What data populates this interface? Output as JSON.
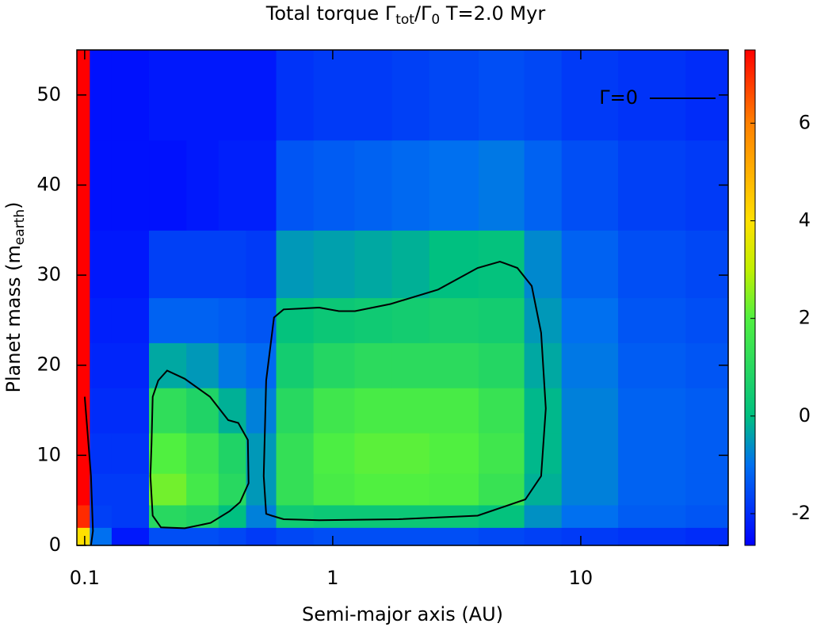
{
  "chart_data": {
    "type": "heatmap",
    "title": [
      "Total torque Γ",
      "tot",
      "/Γ",
      "0",
      " T=2.0 Myr"
    ],
    "xlabel": "Semi-major axis (AU)",
    "ylabel": [
      "Planet mass (m",
      "earth",
      ")"
    ],
    "xscale": "log",
    "xlim": [
      0.093,
      39.3
    ],
    "ylim": [
      0,
      55
    ],
    "xticks": [
      0.1,
      1,
      10
    ],
    "yticks": [
      0,
      10,
      20,
      30,
      40,
      50
    ],
    "zlim": [
      -2.65,
      7.5
    ],
    "zticks": [
      -2,
      0,
      2,
      4,
      6
    ],
    "colormap": [
      {
        "value": -2.65,
        "color": "#0000ff"
      },
      {
        "value": -1,
        "color": "#0070f0"
      },
      {
        "value": 0,
        "color": "#00c080"
      },
      {
        "value": 2,
        "color": "#50f040"
      },
      {
        "value": 3,
        "color": "#c0f000"
      },
      {
        "value": 4,
        "color": "#ffe000"
      },
      {
        "value": 5,
        "color": "#ffb000"
      },
      {
        "value": 6,
        "color": "#ff8000"
      },
      {
        "value": 7.5,
        "color": "#ff0000"
      }
    ],
    "x": [
      0.1,
      0.11,
      0.15,
      0.22,
      0.3,
      0.4,
      0.5,
      0.7,
      1,
      1.5,
      2,
      3,
      5,
      7,
      10,
      20,
      35
    ],
    "y": [
      1,
      3,
      6,
      10,
      15,
      20,
      25,
      30,
      40,
      50
    ],
    "z": [
      [
        4,
        -1,
        -2.3,
        -1.5,
        -1.5,
        -1.6,
        -1.8,
        -1.6,
        -1.5,
        -1.5,
        -1.5,
        -1.5,
        -1.6,
        -1.7,
        -1.8,
        -1.9,
        -2
      ],
      [
        7,
        -1.7,
        -1.8,
        1,
        0.8,
        0,
        -0.8,
        0.4,
        0.3,
        0.3,
        0.3,
        0.3,
        0.1,
        -0.6,
        -1,
        -1.3,
        -1.4
      ],
      [
        7.5,
        -1.8,
        -1.8,
        2.3,
        1.7,
        1,
        -0.5,
        1.3,
        1.8,
        2,
        2,
        1.9,
        1.4,
        -0.2,
        -0.8,
        -1.2,
        -1.3
      ],
      [
        7.5,
        -1.9,
        -1.9,
        2,
        1.5,
        0.8,
        -0.5,
        1.3,
        1.9,
        2.1,
        2.1,
        2,
        1.6,
        -0.1,
        -0.8,
        -1.2,
        -1.3
      ],
      [
        7.5,
        -2,
        -2,
        1.2,
        0.8,
        -0.2,
        -0.8,
        1,
        1.6,
        1.8,
        1.8,
        1.8,
        1.4,
        -0.1,
        -0.8,
        -1.2,
        -1.3
      ],
      [
        7.5,
        -2.1,
        -2.1,
        -0.3,
        -0.5,
        -0.9,
        -1.1,
        0.5,
        0.9,
        1.1,
        1.1,
        1.1,
        0.9,
        -0.3,
        -0.9,
        -1.3,
        -1.4
      ],
      [
        7.5,
        -2.2,
        -2.2,
        -1.2,
        -1.2,
        -1.3,
        -1.4,
        0.1,
        0.3,
        0.4,
        0.5,
        0.6,
        0.5,
        -0.5,
        -1,
        -1.4,
        -1.5
      ],
      [
        7.5,
        -2.3,
        -2.3,
        -1.7,
        -1.7,
        -1.7,
        -1.8,
        -0.5,
        -0.4,
        -0.3,
        -0.2,
        0,
        0.1,
        -0.7,
        -1.2,
        -1.5,
        -1.6
      ],
      [
        7.5,
        -2.4,
        -2.4,
        -2.4,
        -2.3,
        -2.2,
        -2.2,
        -1.4,
        -1.3,
        -1.2,
        -1.1,
        -1,
        -0.9,
        -1.2,
        -1.5,
        -1.7,
        -1.8
      ],
      [
        7.5,
        -2.4,
        -2.4,
        -2.3,
        -2.3,
        -2.3,
        -2.3,
        -1.9,
        -1.8,
        -1.8,
        -1.7,
        -1.6,
        -1.5,
        -1.6,
        -1.8,
        -1.9,
        -2
      ]
    ],
    "contour_label": "Γ=0",
    "contour_color": "#000000",
    "contours": [
      {
        "x": [
          0.1,
          0.103,
          0.106,
          0.108,
          0.106
        ],
        "y": [
          16.5,
          12.1,
          7.7,
          1.6,
          0
        ],
        "closed": false
      },
      {
        "x": [
          0.198,
          0.215,
          0.253,
          0.32,
          0.379,
          0.416,
          0.455,
          0.458,
          0.423,
          0.384,
          0.322,
          0.253,
          0.203,
          0.188,
          0.184,
          0.186,
          0.188
        ],
        "y": [
          18.3,
          19.4,
          18.5,
          16.5,
          13.9,
          13.6,
          11.7,
          6.9,
          4.8,
          3.8,
          2.5,
          1.9,
          2,
          3.3,
          7.7,
          11.2,
          16.5
        ],
        "closed": true
      },
      {
        "x": [
          0.539,
          0.527,
          0.539,
          0.58,
          0.634,
          0.882,
          1.06,
          1.23,
          1.71,
          2.66,
          3.84,
          4.72,
          5.55,
          6.34,
          6.92,
          7.23,
          6.92,
          5.98,
          3.84,
          1.84,
          0.882,
          0.634,
          0.567
        ],
        "y": [
          3.5,
          7.7,
          18.3,
          25.3,
          26.2,
          26.4,
          26,
          26,
          26.8,
          28.4,
          30.8,
          31.5,
          30.8,
          28.8,
          23.6,
          15.2,
          7.7,
          5.1,
          3.3,
          2.9,
          2.8,
          2.9,
          3.3
        ],
        "closed": true
      }
    ]
  }
}
